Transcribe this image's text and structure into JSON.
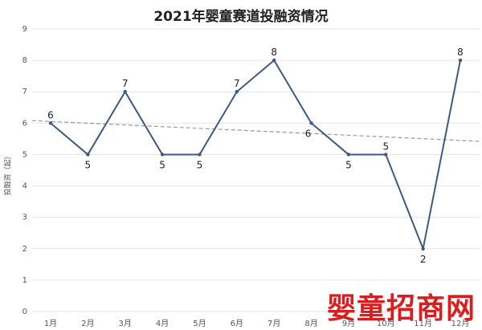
{
  "title": "2021年婴童赛道投融资情况",
  "watermark": "婴童招商网",
  "chart_data": {
    "type": "line",
    "title": "2021年婴童赛道投融资情况",
    "xlabel": "",
    "ylabel": "投融资（起）",
    "categories": [
      "1月",
      "2月",
      "3月",
      "4月",
      "5月",
      "6月",
      "7月",
      "8月",
      "9月",
      "10月",
      "11月",
      "12月"
    ],
    "series": [
      {
        "values": [
          6,
          5,
          7,
          5,
          5,
          7,
          8,
          6,
          5,
          5,
          2,
          8
        ]
      }
    ],
    "ylim": [
      0,
      9
    ],
    "yticks": [
      0,
      1,
      2,
      3,
      4,
      5,
      6,
      7,
      8,
      9
    ],
    "trendline": {
      "style": "dashed",
      "start": 6.08,
      "end": 5.42
    },
    "grid": true,
    "colors": {
      "line": "#3d5a80",
      "trend": "#999999",
      "grid": "#e6e6e6",
      "watermark": "#d81e1e"
    }
  }
}
